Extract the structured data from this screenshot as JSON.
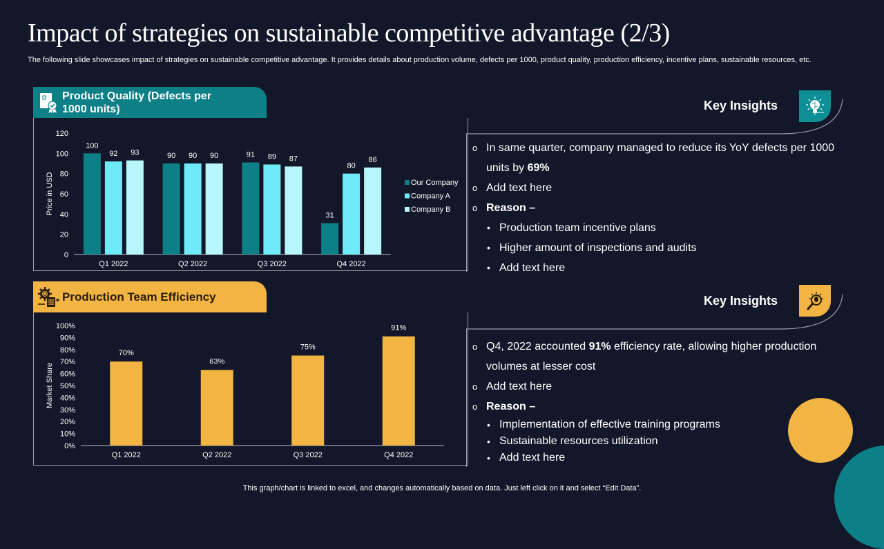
{
  "slide": {
    "title": "Impact of strategies on sustainable competitive advantage (2/3)",
    "subtitle": "The following slide showcases impact of strategies on sustainable competitive advantage. It provides details about production volume, defects per 1000, product quality, production efficiency, incentive plans, sustainable resources, etc.",
    "footer": "This graph/chart is linked to excel, and changes automatically based on data. Just left click on it and select “Edit Data”."
  },
  "panels": [
    {
      "title": "Product Quality (Defects per 1000 units)",
      "icon": "quality-badge-icon",
      "color": "#0d7f86"
    },
    {
      "title": "Production Team Efficiency",
      "icon": "gear-document-icon",
      "color": "#f2b443"
    }
  ],
  "insights": [
    {
      "title": "Key Insights",
      "icon": "lightbulb-brain-icon",
      "items": [
        {
          "level": 1,
          "parts": [
            {
              "text": "In same quarter, company managed to reduce its YoY defects per 1000 units by ",
              "bold": false
            },
            {
              "text": "69%",
              "bold": true
            }
          ]
        },
        {
          "level": 1,
          "parts": [
            {
              "text": "Add text here",
              "bold": false
            }
          ]
        },
        {
          "level": 1,
          "parts": [
            {
              "text": "Reason –",
              "bold": true
            }
          ]
        },
        {
          "level": 2,
          "parts": [
            {
              "text": "Production team incentive plans",
              "bold": false
            }
          ]
        },
        {
          "level": 2,
          "parts": [
            {
              "text": "Higher amount of inspections and audits",
              "bold": false
            }
          ]
        },
        {
          "level": 2,
          "parts": [
            {
              "text": "Add text here",
              "bold": false
            }
          ]
        }
      ]
    },
    {
      "title": "Key Insights",
      "icon": "lightbulb-magnifier-icon",
      "items": [
        {
          "level": 1,
          "parts": [
            {
              "text": "Q4, 2022 accounted ",
              "bold": false
            },
            {
              "text": "91%",
              "bold": true
            },
            {
              "text": " efficiency rate, allowing higher production volumes at lesser cost",
              "bold": false
            }
          ]
        },
        {
          "level": 1,
          "parts": [
            {
              "text": "Add text here",
              "bold": false
            }
          ]
        },
        {
          "level": 1,
          "parts": [
            {
              "text": "Reason –",
              "bold": true
            }
          ]
        },
        {
          "level": 2,
          "parts": [
            {
              "text": "Implementation of effective training programs",
              "bold": false
            }
          ]
        },
        {
          "level": 2,
          "parts": [
            {
              "text": "Sustainable resources utilization",
              "bold": false
            }
          ]
        },
        {
          "level": 2,
          "parts": [
            {
              "text": "Add text here",
              "bold": false
            }
          ]
        }
      ]
    }
  ],
  "chart_data": [
    {
      "type": "bar",
      "title": "Product Quality (Defects per 1000 units)",
      "categories": [
        "Q1 2022",
        "Q2 2022",
        "Q3 2022",
        "Q4 2022"
      ],
      "series": [
        {
          "name": "Our Company",
          "color": "#0d7f86",
          "values": [
            100,
            90,
            91,
            31
          ]
        },
        {
          "name": "Company A",
          "color": "#6eeaf8",
          "values": [
            92,
            90,
            89,
            80
          ]
        },
        {
          "name": "Company B",
          "color": "#b7f6fc",
          "values": [
            93,
            90,
            87,
            86
          ]
        }
      ],
      "xlabel": "",
      "ylabel": "Price in USD",
      "ylim": [
        0,
        120
      ],
      "yticks": [
        "0",
        "20",
        "40",
        "60",
        "80",
        "100",
        "120"
      ],
      "grid": false,
      "legend": "right",
      "data_labels": true
    },
    {
      "type": "bar",
      "title": "Production Team Efficiency",
      "categories": [
        "Q1 2022",
        "Q2 2022",
        "Q3 2022",
        "Q4 2022"
      ],
      "series": [
        {
          "name": "Efficiency",
          "color": "#f2b443",
          "values": [
            70,
            63,
            75,
            91
          ]
        }
      ],
      "value_labels": [
        "70%",
        "63%",
        "75%",
        "91%"
      ],
      "xlabel": "",
      "ylabel": "Market Share",
      "ylim": [
        0,
        100
      ],
      "yticks": [
        "0%",
        "10%",
        "20%",
        "30%",
        "40%",
        "50%",
        "60%",
        "70%",
        "80%",
        "90%",
        "100%"
      ],
      "grid": false,
      "legend": "none",
      "data_labels": true
    }
  ]
}
